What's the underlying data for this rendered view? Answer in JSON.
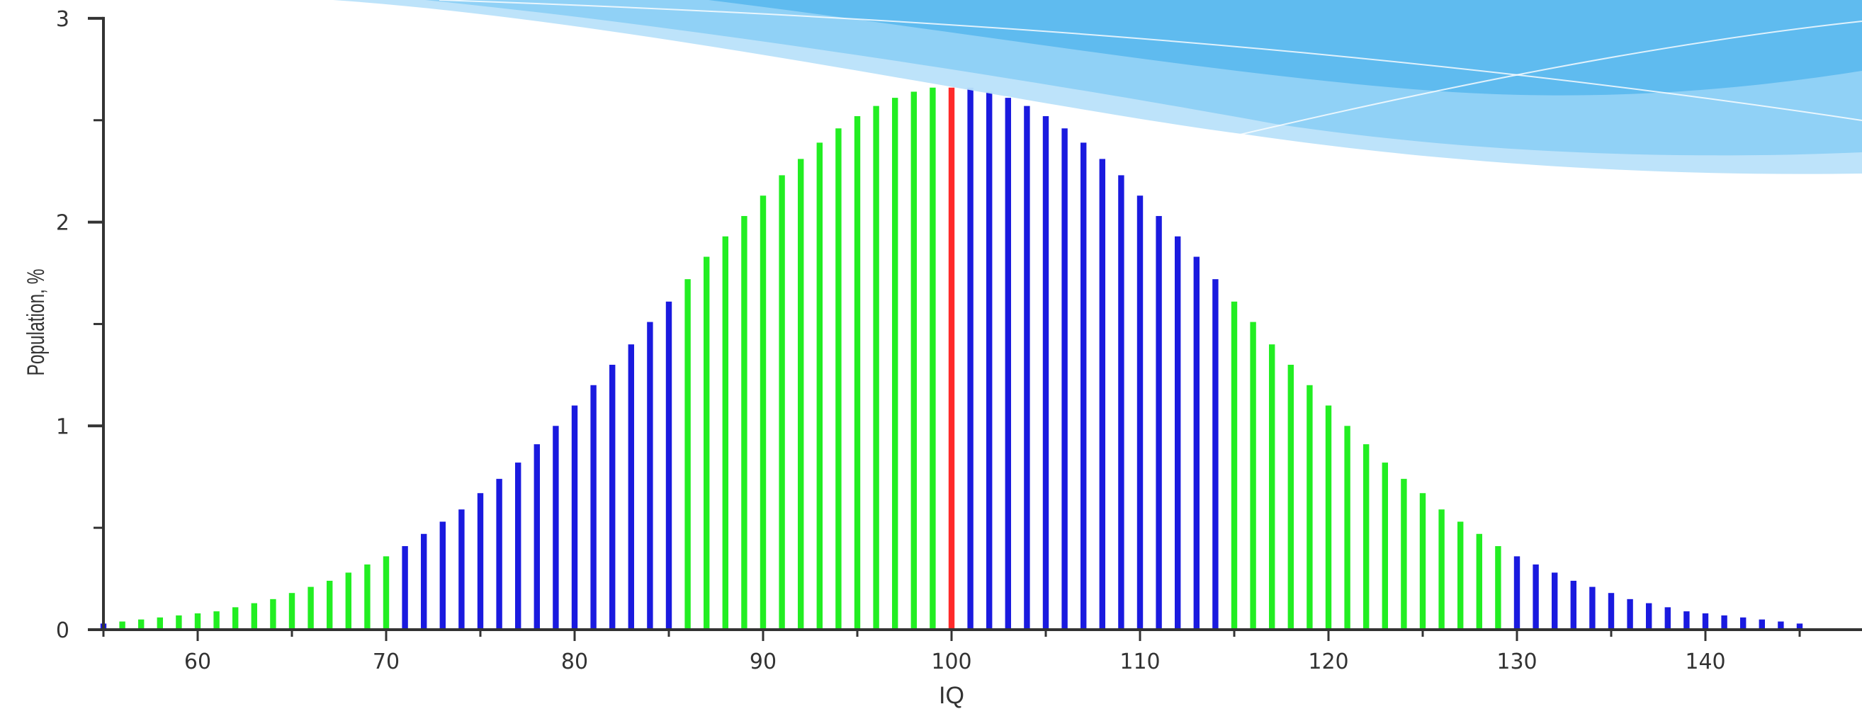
{
  "chart_data": {
    "type": "bar",
    "title": "",
    "xlabel": "IQ",
    "ylabel": "Population, %",
    "xlim": [
      55,
      145
    ],
    "ylim": [
      0,
      3
    ],
    "x_ticks": [
      60,
      70,
      80,
      90,
      100,
      110,
      120,
      130,
      140
    ],
    "y_ticks": [
      0,
      1,
      2,
      3
    ],
    "y_minor_ticks": [
      0.5,
      1.5,
      2.5
    ],
    "grid": false,
    "legend": "none",
    "mean": 100,
    "sd": 15,
    "x": [
      55,
      56,
      57,
      58,
      59,
      60,
      61,
      62,
      63,
      64,
      65,
      66,
      67,
      68,
      69,
      70,
      71,
      72,
      73,
      74,
      75,
      76,
      77,
      78,
      79,
      80,
      81,
      82,
      83,
      84,
      85,
      86,
      87,
      88,
      89,
      90,
      91,
      92,
      93,
      94,
      95,
      96,
      97,
      98,
      99,
      100,
      101,
      102,
      103,
      104,
      105,
      106,
      107,
      108,
      109,
      110,
      111,
      112,
      113,
      114,
      115,
      116,
      117,
      118,
      119,
      120,
      121,
      122,
      123,
      124,
      125,
      126,
      127,
      128,
      129,
      130,
      131,
      132,
      133,
      134,
      135,
      136,
      137,
      138,
      139,
      140,
      141,
      142,
      143,
      144,
      145
    ],
    "values": [
      0.03,
      0.04,
      0.05,
      0.06,
      0.07,
      0.08,
      0.09,
      0.11,
      0.13,
      0.15,
      0.18,
      0.21,
      0.24,
      0.28,
      0.32,
      0.36,
      0.41,
      0.47,
      0.53,
      0.59,
      0.67,
      0.74,
      0.82,
      0.91,
      1.0,
      1.1,
      1.2,
      1.3,
      1.4,
      1.51,
      1.61,
      1.72,
      1.83,
      1.93,
      2.03,
      2.13,
      2.23,
      2.31,
      2.39,
      2.46,
      2.52,
      2.57,
      2.61,
      2.64,
      2.66,
      2.66,
      2.66,
      2.64,
      2.61,
      2.57,
      2.52,
      2.46,
      2.39,
      2.31,
      2.23,
      2.13,
      2.03,
      1.93,
      1.83,
      1.72,
      1.61,
      1.51,
      1.4,
      1.3,
      1.2,
      1.1,
      1.0,
      0.91,
      0.82,
      0.74,
      0.67,
      0.59,
      0.53,
      0.47,
      0.41,
      0.36,
      0.32,
      0.28,
      0.24,
      0.21,
      0.18,
      0.15,
      0.13,
      0.11,
      0.09,
      0.08,
      0.07,
      0.06,
      0.05,
      0.04,
      0.03
    ],
    "colors": {
      "blue": "#1a1adf",
      "green": "#22ee22",
      "red": "#ff2a2a",
      "axis": "#333333"
    },
    "color_bands": [
      {
        "from": 55,
        "to": 55,
        "color": "blue"
      },
      {
        "from": 56,
        "to": 70,
        "color": "green"
      },
      {
        "from": 71,
        "to": 85,
        "color": "blue"
      },
      {
        "from": 86,
        "to": 99,
        "color": "green"
      },
      {
        "from": 100,
        "to": 100,
        "color": "red"
      },
      {
        "from": 101,
        "to": 114,
        "color": "blue"
      },
      {
        "from": 115,
        "to": 129,
        "color": "green"
      },
      {
        "from": 130,
        "to": 145,
        "color": "blue"
      }
    ]
  },
  "decoration": {
    "wave_colors": [
      "#5ab8ee",
      "#8dd0f6",
      "#b9e2fa"
    ]
  }
}
